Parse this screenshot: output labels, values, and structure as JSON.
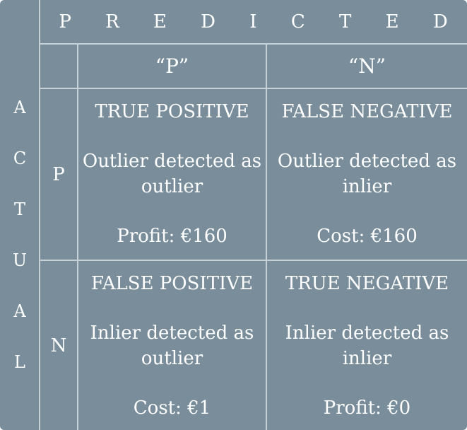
{
  "predicted_label": "P R E D I C T E D",
  "actual_letters": [
    "A",
    "C",
    "T",
    "U",
    "A",
    "L"
  ],
  "columns": [
    "“P”",
    "“N”"
  ],
  "rows": [
    "P",
    "N"
  ],
  "cells": {
    "tp": {
      "title": "TRUE POSITIVE",
      "desc": "Outlier detected as outlier",
      "value": "Profit: €160"
    },
    "fn": {
      "title": "FALSE NEGATIVE",
      "desc": "Outlier detected as inlier",
      "value": "Cost: €160"
    },
    "fp": {
      "title": "FALSE POSITIVE",
      "desc": "Inlier detected as outlier",
      "value": "Cost: €1"
    },
    "tn": {
      "title": "TRUE NEGATIVE",
      "desc": "Inlier detected as inlier",
      "value": "Profit: €0"
    }
  },
  "colors": {
    "background": "#798d9b",
    "grid_lines": "#c6d1d8",
    "text": "#ffffff"
  }
}
